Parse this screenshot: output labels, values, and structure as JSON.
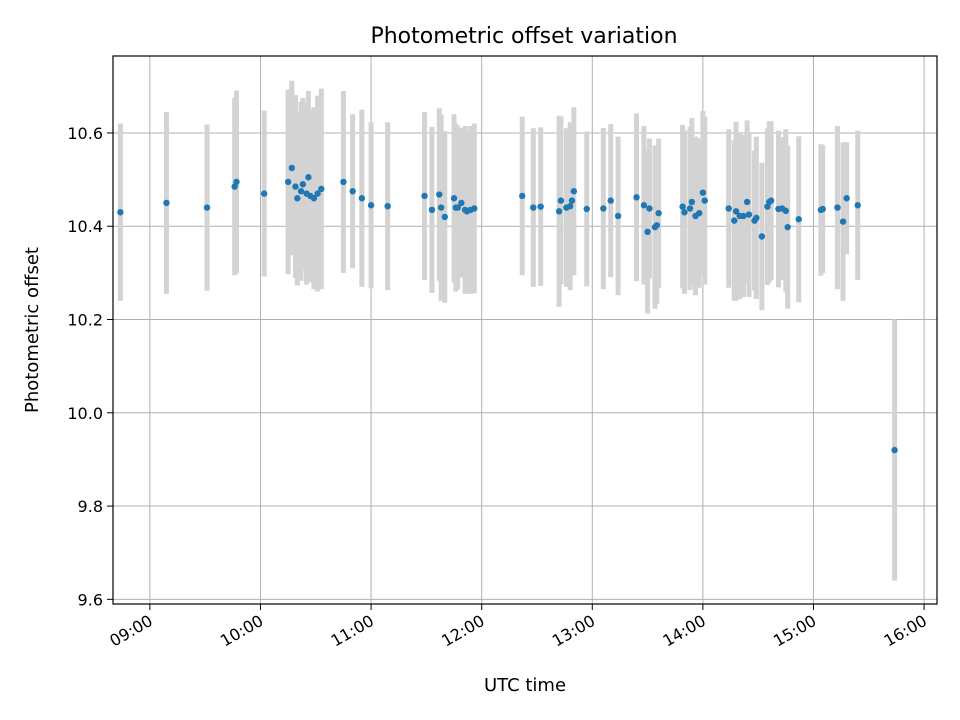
{
  "chart_data": {
    "type": "scatter",
    "title": "Photometric offset variation",
    "xlabel": "UTC time",
    "ylabel": "Photometric offset",
    "x_axis_kind": "time",
    "xlim": [
      "08:40",
      "16:07"
    ],
    "ylim": [
      9.59,
      10.765
    ],
    "x_ticks": [
      "09:00",
      "10:00",
      "11:00",
      "12:00",
      "13:00",
      "14:00",
      "15:00",
      "16:00"
    ],
    "y_ticks": [
      9.6,
      9.8,
      10.0,
      10.2,
      10.4,
      10.6
    ],
    "y_tick_labels": [
      "9.6",
      "9.8",
      "10.0",
      "10.2",
      "10.4",
      "10.6"
    ],
    "grid": true,
    "colors": {
      "marker": "#1f77b4",
      "errorbar": "#d3d3d3",
      "grid": "#b0b0b0"
    },
    "series": [
      {
        "marker": "point",
        "error_bars": "vertical",
        "x": [
          "08:44",
          "09:09",
          "09:31",
          "09:46",
          "09:47",
          "10:02",
          "10:15",
          "10:17",
          "10:19",
          "10:20",
          "10:22",
          "10:23",
          "10:25",
          "10:26",
          "10:27",
          "10:29",
          "10:31",
          "10:33",
          "10:45",
          "10:50",
          "10:55",
          "11:00",
          "11:09",
          "11:29",
          "11:33",
          "11:37",
          "11:38",
          "11:40",
          "11:45",
          "11:46",
          "11:47",
          "11:49",
          "11:51",
          "11:52",
          "11:54",
          "11:56",
          "12:22",
          "12:28",
          "12:32",
          "12:42",
          "12:43",
          "12:46",
          "12:48",
          "12:49",
          "12:50",
          "12:57",
          "13:06",
          "13:10",
          "13:14",
          "13:24",
          "13:28",
          "13:30",
          "13:31",
          "13:34",
          "13:35",
          "13:36",
          "13:49",
          "13:50",
          "13:53",
          "13:54",
          "13:56",
          "13:58",
          "14:00",
          "14:01",
          "14:14",
          "14:17",
          "14:18",
          "14:20",
          "14:22",
          "14:24",
          "14:25",
          "14:28",
          "14:29",
          "14:32",
          "14:35",
          "14:36",
          "14:37",
          "14:41",
          "14:43",
          "14:45",
          "14:46",
          "14:52",
          "15:04",
          "15:05",
          "15:13",
          "15:16",
          "15:18",
          "15:24",
          "15:44"
        ],
        "y": [
          10.43,
          10.45,
          10.44,
          10.485,
          10.495,
          10.47,
          10.495,
          10.525,
          10.485,
          10.46,
          10.475,
          10.49,
          10.47,
          10.505,
          10.465,
          10.46,
          10.47,
          10.48,
          10.495,
          10.475,
          10.46,
          10.445,
          10.443,
          10.465,
          10.435,
          10.468,
          10.44,
          10.42,
          10.46,
          10.44,
          10.44,
          10.45,
          10.435,
          10.432,
          10.435,
          10.438,
          10.465,
          10.44,
          10.442,
          10.432,
          10.455,
          10.44,
          10.443,
          10.455,
          10.475,
          10.437,
          10.438,
          10.455,
          10.422,
          10.462,
          10.445,
          10.388,
          10.438,
          10.398,
          10.402,
          10.428,
          10.442,
          10.43,
          10.438,
          10.452,
          10.422,
          10.428,
          10.472,
          10.455,
          10.438,
          10.412,
          10.432,
          10.422,
          10.422,
          10.452,
          10.425,
          10.412,
          10.418,
          10.378,
          10.442,
          10.452,
          10.455,
          10.437,
          10.438,
          10.433,
          10.398,
          10.415,
          10.435,
          10.437,
          10.44,
          10.41,
          10.46,
          10.445,
          9.92
        ],
        "yerr": [
          0.19,
          0.195,
          0.178,
          0.19,
          0.196,
          0.178,
          0.198,
          0.187,
          0.196,
          0.187,
          0.192,
          0.185,
          0.195,
          0.185,
          0.185,
          0.195,
          0.21,
          0.215,
          0.195,
          0.165,
          0.19,
          0.178,
          0.18,
          0.18,
          0.178,
          0.185,
          0.2,
          0.184,
          0.18,
          0.18,
          0.175,
          0.16,
          0.18,
          0.175,
          0.18,
          0.182,
          0.17,
          0.17,
          0.17,
          0.205,
          0.18,
          0.17,
          0.18,
          0.15,
          0.18,
          0.166,
          0.173,
          0.164,
          0.17,
          0.18,
          0.17,
          0.175,
          0.15,
          0.175,
          0.168,
          0.16,
          0.175,
          0.175,
          0.175,
          0.18,
          0.17,
          0.16,
          0.175,
          0.18,
          0.17,
          0.172,
          0.192,
          0.178,
          0.174,
          0.175,
          0.177,
          0.15,
          0.174,
          0.158,
          0.168,
          0.173,
          0.17,
          0.168,
          0.153,
          0.175,
          0.175,
          0.178,
          0.141,
          0.137,
          0.175,
          0.17,
          0.12,
          0.16,
          0.28
        ]
      }
    ]
  }
}
